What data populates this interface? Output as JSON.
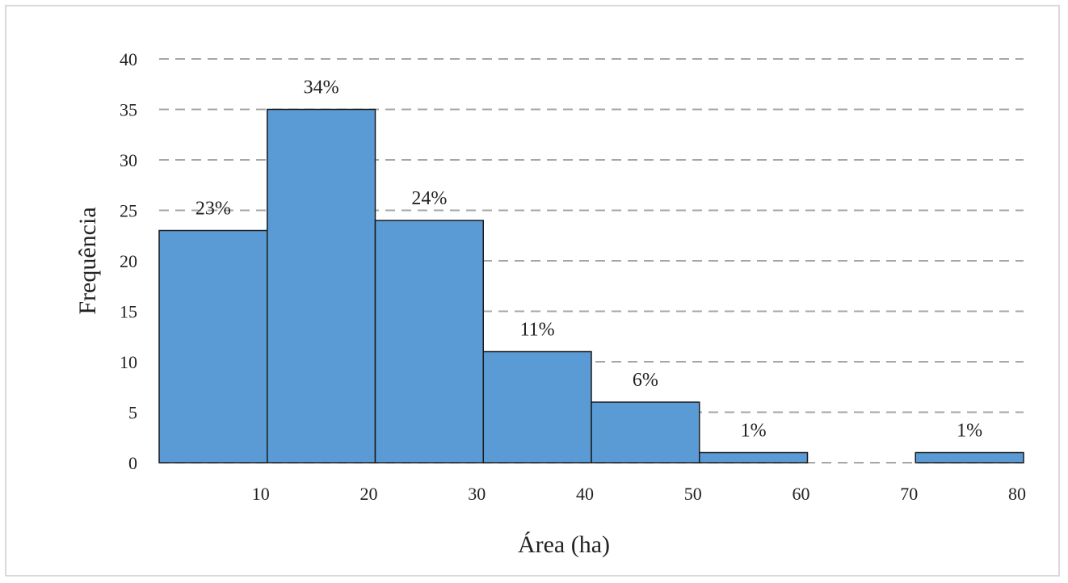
{
  "chart_data": {
    "type": "bar",
    "title": "",
    "xlabel": "Área (ha)",
    "ylabel": "Frequência",
    "ylim": [
      0,
      40
    ],
    "yticks": [
      "0",
      "5",
      "10",
      "15",
      "20",
      "25",
      "30",
      "35",
      "40"
    ],
    "xticks": [
      {
        "value": 10,
        "label": "10"
      },
      {
        "value": 20,
        "label": "20"
      },
      {
        "value": 30,
        "label": "30"
      },
      {
        "value": 40,
        "label": "40"
      },
      {
        "value": 50,
        "label": "50"
      },
      {
        "value": 60,
        "label": "60"
      },
      {
        "value": 70,
        "label": "70"
      },
      {
        "value": 80,
        "label": "80"
      }
    ],
    "grid": true,
    "bars": [
      {
        "from": 0,
        "to": 10,
        "value": 23,
        "label": "23%"
      },
      {
        "from": 10,
        "to": 20,
        "value": 35,
        "label": "34%"
      },
      {
        "from": 20,
        "to": 30,
        "value": 24,
        "label": "24%"
      },
      {
        "from": 30,
        "to": 40,
        "value": 11,
        "label": "11%"
      },
      {
        "from": 40,
        "to": 50,
        "value": 6,
        "label": "6%"
      },
      {
        "from": 50,
        "to": 60,
        "value": 1,
        "label": "1%"
      },
      {
        "from": 70,
        "to": 80,
        "value": 1,
        "label": "1%"
      }
    ],
    "colors": {
      "bar": "#5b9bd5",
      "bar_edge": "#1a1a1a",
      "grid": "#a6a6a6"
    }
  }
}
